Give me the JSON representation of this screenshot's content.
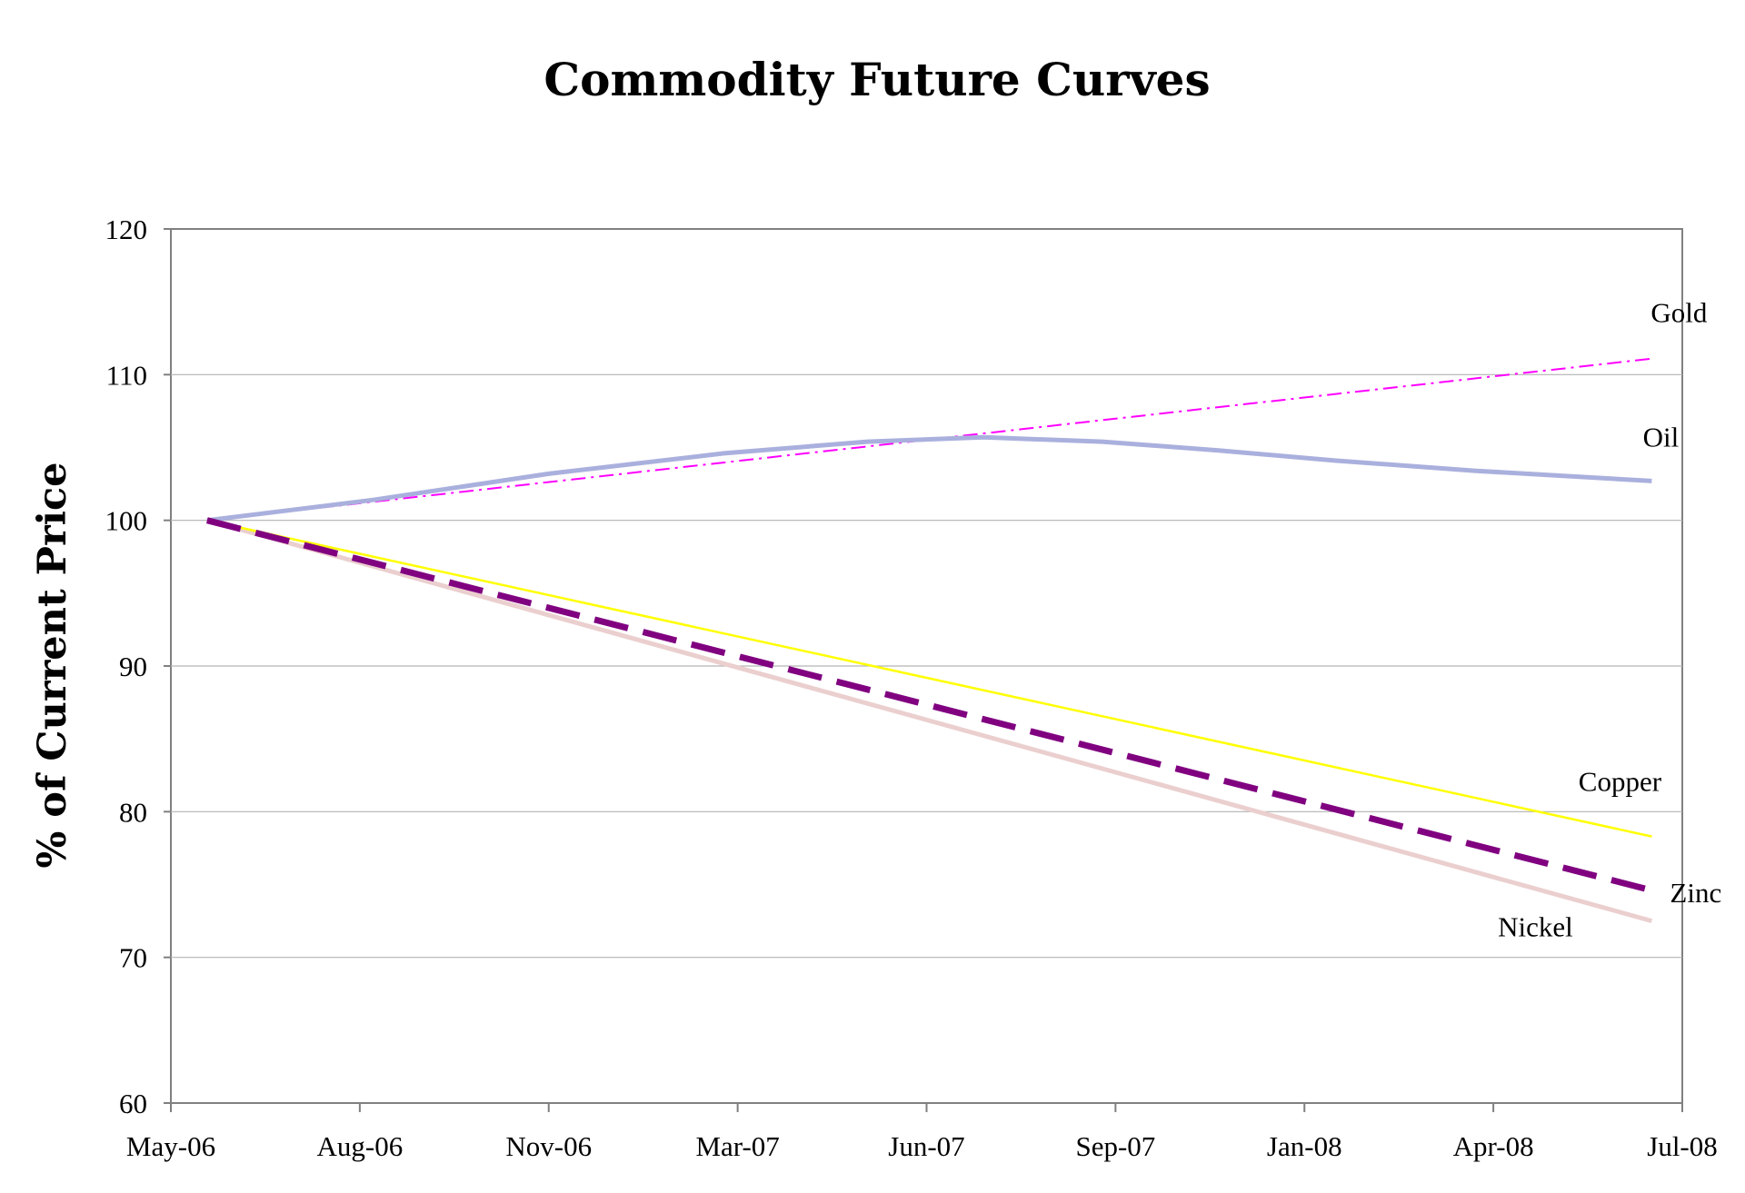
{
  "chart_data": {
    "type": "line",
    "title": "Commodity Future Curves",
    "xlabel": "",
    "ylabel": "% of Current Price",
    "ylim": [
      60,
      120
    ],
    "yticks": [
      60,
      70,
      80,
      90,
      100,
      110,
      120
    ],
    "xlim": [
      "2006-05-01",
      "2008-07-01"
    ],
    "xticks": [
      "May-06",
      "Aug-06",
      "Nov-06",
      "Mar-07",
      "Jun-07",
      "Sep-07",
      "Jan-08",
      "Apr-08",
      "Jul-08"
    ],
    "grid": "horizontal",
    "legend": "none (series labeled inline at line ends)",
    "series": [
      {
        "name": "Gold",
        "color": "#ff00ff",
        "style": "dash-dot",
        "points": [
          [
            "2006-05-20",
            100
          ],
          [
            "2008-06-15",
            111.1
          ]
        ]
      },
      {
        "name": "Oil",
        "color": "#aab0dd",
        "style": "solid-thick",
        "points": [
          [
            "2006-05-20",
            100
          ],
          [
            "2006-08-15",
            101.4
          ],
          [
            "2006-11-15",
            103.2
          ],
          [
            "2007-02-15",
            104.6
          ],
          [
            "2007-05-01",
            105.4
          ],
          [
            "2007-07-01",
            105.7
          ],
          [
            "2007-09-01",
            105.4
          ],
          [
            "2007-11-01",
            104.8
          ],
          [
            "2008-01-01",
            104.1
          ],
          [
            "2008-03-15",
            103.4
          ],
          [
            "2008-06-15",
            102.7
          ]
        ]
      },
      {
        "name": "Copper",
        "color": "#ffff00",
        "style": "solid",
        "points": [
          [
            "2006-05-20",
            100
          ],
          [
            "2008-06-15",
            78.3
          ]
        ]
      },
      {
        "name": "Zinc",
        "color": "#800080",
        "style": "dashed-thick",
        "points": [
          [
            "2006-05-20",
            100
          ],
          [
            "2008-06-15",
            74.6
          ]
        ]
      },
      {
        "name": "Nickel",
        "color": "#ebcfcf",
        "style": "solid-thick",
        "points": [
          [
            "2006-05-20",
            100
          ],
          [
            "2008-06-15",
            72.5
          ]
        ]
      }
    ],
    "series_labels": [
      "Gold",
      "Oil",
      "Copper",
      "Zinc",
      "Nickel"
    ]
  }
}
